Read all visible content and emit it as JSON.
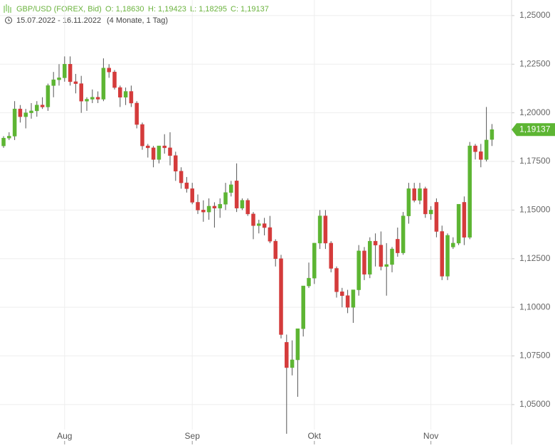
{
  "chart_data": {
    "type": "candlestick",
    "title": "GBP/USD (FOREX, Bid)",
    "quote": [
      "O: 1,18630",
      "H: 1,19423",
      "L: 1,18295",
      "C: 1,19137"
    ],
    "period": "15.07.2022 - 16.11.2022",
    "period_note": "(4 Monate, 1 Tag)",
    "categories": [
      null,
      null,
      null,
      null,
      null,
      null,
      null,
      null,
      null,
      null,
      null,
      "Aug",
      null,
      null,
      null,
      null,
      null,
      null,
      null,
      null,
      null,
      null,
      null,
      null,
      null,
      null,
      null,
      null,
      null,
      null,
      null,
      null,
      null,
      null,
      "Sep",
      null,
      null,
      null,
      null,
      null,
      null,
      null,
      null,
      null,
      null,
      null,
      null,
      null,
      null,
      null,
      null,
      null,
      null,
      null,
      null,
      null,
      "Okt",
      null,
      null,
      null,
      null,
      null,
      null,
      null,
      null,
      null,
      null,
      null,
      null,
      null,
      null,
      null,
      null,
      null,
      null,
      null,
      null,
      "Nov",
      null,
      null,
      null,
      null,
      null,
      null,
      null,
      null,
      null,
      null,
      null
    ],
    "open": [
      1.183,
      1.187,
      1.188,
      1.202,
      1.198,
      1.2,
      1.201,
      1.204,
      1.203,
      1.214,
      1.217,
      1.218,
      1.225,
      1.216,
      1.215,
      1.206,
      1.207,
      1.208,
      1.207,
      1.223,
      1.221,
      1.213,
      1.208,
      1.211,
      1.205,
      1.194,
      1.183,
      1.182,
      1.176,
      1.183,
      1.182,
      1.178,
      1.17,
      1.164,
      1.161,
      1.154,
      1.15,
      1.149,
      1.152,
      1.151,
      1.153,
      1.159,
      1.165,
      1.151,
      1.155,
      1.148,
      1.142,
      1.143,
      1.141,
      1.134,
      1.125,
      1.082,
      1.069,
      1.073,
      1.089,
      1.111,
      1.115,
      1.133,
      1.147,
      1.133,
      1.12,
      1.108,
      1.106,
      1.1,
      1.109,
      1.129,
      1.117,
      1.134,
      1.132,
      1.121,
      1.122,
      1.135,
      1.128,
      1.147,
      1.161,
      1.155,
      1.161,
      1.148,
      1.154,
      1.139,
      1.116,
      1.131,
      1.133,
      1.154,
      1.136,
      1.183,
      1.18,
      1.176,
      1.1863
    ],
    "high": [
      1.188,
      1.19,
      1.206,
      1.204,
      1.202,
      1.205,
      1.206,
      1.208,
      1.215,
      1.221,
      1.225,
      1.229,
      1.229,
      1.22,
      1.219,
      1.208,
      1.212,
      1.211,
      1.228,
      1.225,
      1.222,
      1.214,
      1.213,
      1.214,
      1.206,
      1.195,
      1.184,
      1.183,
      1.183,
      1.189,
      1.19,
      1.18,
      1.172,
      1.167,
      1.164,
      1.158,
      1.155,
      1.156,
      1.154,
      1.156,
      1.164,
      1.165,
      1.174,
      1.156,
      1.156,
      1.149,
      1.145,
      1.146,
      1.147,
      1.135,
      1.127,
      1.086,
      1.083,
      1.088,
      1.111,
      1.123,
      1.133,
      1.15,
      1.15,
      1.134,
      1.121,
      1.11,
      1.109,
      1.109,
      1.132,
      1.131,
      1.136,
      1.138,
      1.139,
      1.133,
      1.131,
      1.141,
      1.149,
      1.164,
      1.164,
      1.164,
      1.162,
      1.152,
      1.156,
      1.142,
      1.138,
      1.136,
      1.153,
      1.157,
      1.185,
      1.184,
      1.184,
      1.203,
      1.19423
    ],
    "low": [
      1.182,
      1.186,
      1.186,
      1.195,
      1.192,
      1.197,
      1.198,
      1.202,
      1.201,
      1.208,
      1.214,
      1.216,
      1.214,
      1.21,
      1.2,
      1.201,
      1.205,
      1.205,
      1.206,
      1.218,
      1.212,
      1.203,
      1.204,
      1.203,
      1.192,
      1.181,
      1.177,
      1.172,
      1.174,
      1.179,
      1.173,
      1.165,
      1.161,
      1.159,
      1.153,
      1.148,
      1.144,
      1.145,
      1.141,
      1.146,
      1.15,
      1.157,
      1.149,
      1.15,
      1.147,
      1.135,
      1.138,
      1.137,
      1.133,
      1.121,
      1.084,
      1.035,
      1.065,
      1.054,
      1.085,
      1.11,
      1.112,
      1.13,
      1.13,
      1.118,
      1.105,
      1.1,
      1.097,
      1.092,
      1.106,
      1.114,
      1.115,
      1.121,
      1.119,
      1.106,
      1.118,
      1.126,
      1.127,
      1.143,
      1.154,
      1.153,
      1.146,
      1.145,
      1.136,
      1.114,
      1.114,
      1.13,
      1.132,
      1.132,
      1.135,
      1.176,
      1.172,
      1.175,
      1.18295
    ],
    "close": [
      1.187,
      1.188,
      1.202,
      1.198,
      1.2,
      1.201,
      1.204,
      1.203,
      1.214,
      1.217,
      1.218,
      1.225,
      1.216,
      1.215,
      1.206,
      1.207,
      1.208,
      1.207,
      1.223,
      1.221,
      1.213,
      1.208,
      1.211,
      1.205,
      1.194,
      1.183,
      1.182,
      1.176,
      1.183,
      1.182,
      1.178,
      1.17,
      1.164,
      1.161,
      1.154,
      1.15,
      1.149,
      1.152,
      1.151,
      1.153,
      1.159,
      1.163,
      1.151,
      1.155,
      1.148,
      1.142,
      1.143,
      1.141,
      1.134,
      1.125,
      1.086,
      1.069,
      1.073,
      1.089,
      1.111,
      1.115,
      1.133,
      1.147,
      1.133,
      1.12,
      1.108,
      1.106,
      1.1,
      1.109,
      1.129,
      1.117,
      1.134,
      1.132,
      1.121,
      1.122,
      1.13,
      1.128,
      1.147,
      1.161,
      1.155,
      1.161,
      1.148,
      1.15,
      1.139,
      1.116,
      1.137,
      1.133,
      1.153,
      1.136,
      1.183,
      1.18,
      1.176,
      1.186,
      1.19137
    ],
    "up_color": "#5db533",
    "down_color": "#d43b3b",
    "last_price": {
      "value": 1.19137,
      "label": "1,19137"
    },
    "ylim": [
      1.0295,
      1.258
    ],
    "yticks": [
      {
        "value": 1.05,
        "label": "1,05000"
      },
      {
        "value": 1.075,
        "label": "1,07500"
      },
      {
        "value": 1.1,
        "label": "1,10000"
      },
      {
        "value": 1.125,
        "label": "1,12500"
      },
      {
        "value": 1.15,
        "label": "1,15000"
      },
      {
        "value": 1.175,
        "label": "1,17500"
      },
      {
        "value": 1.2,
        "label": "1,20000"
      },
      {
        "value": 1.225,
        "label": "1,22500"
      },
      {
        "value": 1.25,
        "label": "1,25000"
      }
    ],
    "grid": true
  }
}
